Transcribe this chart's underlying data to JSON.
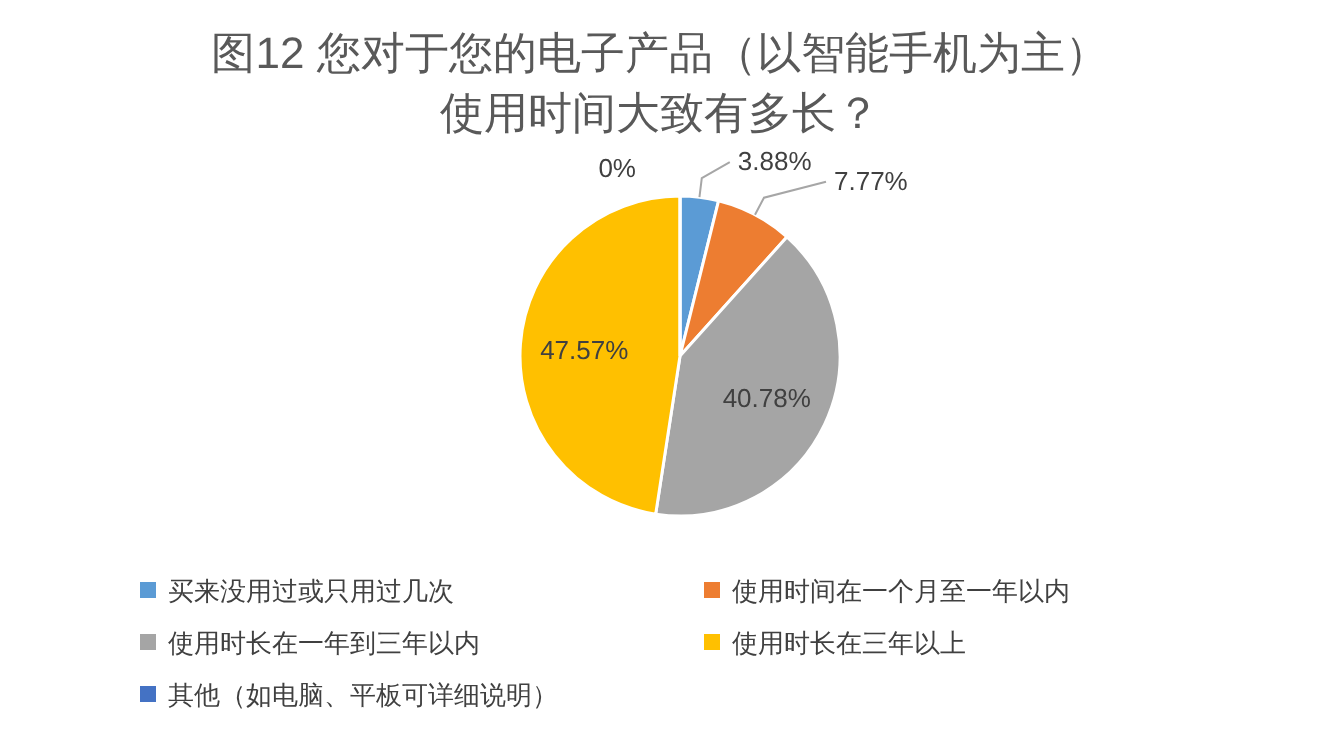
{
  "chart_data": {
    "type": "pie",
    "title": "图12  您对于您的电子产品（以智能手机为主）使用时间大致有多长？",
    "categories": [
      "买来没用过或只用过几次",
      "使用时间在一个月至一年以内",
      "使用时长在一年到三年以内",
      "使用时长在三年以上",
      "其他（如电脑、平板可详细说明）"
    ],
    "values": [
      3.88,
      7.77,
      40.78,
      47.57,
      0
    ],
    "colors": [
      "#5b9bd5",
      "#ed7d31",
      "#a5a5a5",
      "#ffc000",
      "#4472c4"
    ],
    "value_labels": [
      "3.88%",
      "7.77%",
      "40.78%",
      "47.57%",
      "0%"
    ],
    "legend": "bottom"
  }
}
